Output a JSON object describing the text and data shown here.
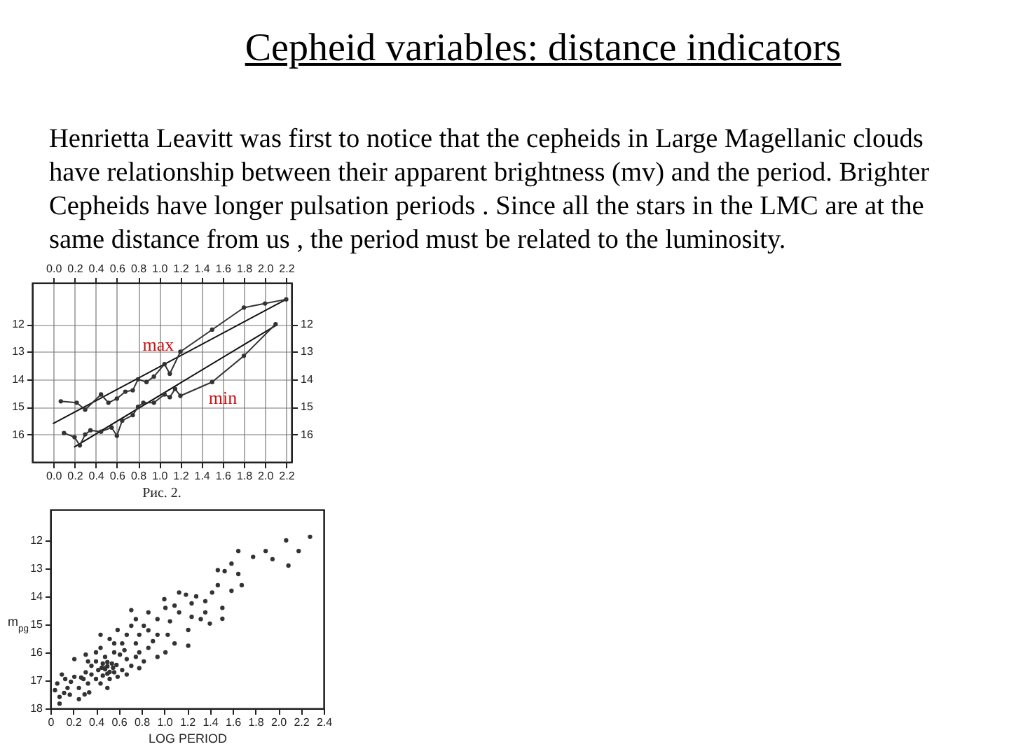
{
  "chart_data": [
    {
      "type": "line",
      "title": "Cepheid variables: distance indicators",
      "subtitle": "Henrietta Leavitt was first to notice that the cepheids in Large Magellanic clouds have relationship between their apparent brightness (mv) and the period. Brighter Cepheids have longer pulsation periods . Since all the stars in the LMC are at the same distance from us , the period must be related to the luminosity.",
      "series": [
        {
          "color": "#111111",
          "marker": "none",
          "x": [
            0.0,
            2.2
          ],
          "values": [
            15.6,
            11.1
          ]
        },
        {
          "color": "#111111",
          "marker": "none",
          "x": [
            0.2,
            2.1
          ],
          "values": [
            16.45,
            12.05
          ]
        },
        {
          "color": "#333333",
          "x": [
            0.07,
            0.22,
            0.3,
            0.45,
            0.52,
            0.6,
            0.68,
            0.75,
            0.8,
            0.88,
            0.95,
            1.05,
            1.1,
            1.2,
            1.5,
            1.8,
            2.0,
            2.2
          ],
          "values": [
            14.8,
            14.85,
            15.1,
            14.55,
            14.85,
            14.7,
            14.45,
            14.4,
            14.0,
            14.1,
            13.9,
            13.45,
            13.8,
            13.0,
            12.2,
            11.4,
            11.25,
            11.1
          ]
        },
        {
          "color": "#333333",
          "x": [
            0.1,
            0.2,
            0.25,
            0.3,
            0.35,
            0.45,
            0.55,
            0.6,
            0.65,
            0.75,
            0.8,
            0.85,
            0.95,
            1.05,
            1.1,
            1.15,
            1.2,
            1.5,
            1.8,
            2.1
          ],
          "values": [
            15.95,
            16.1,
            16.4,
            16.0,
            15.85,
            15.9,
            15.75,
            16.05,
            15.5,
            15.3,
            15.0,
            14.85,
            14.85,
            14.55,
            14.65,
            14.35,
            14.6,
            14.1,
            13.15,
            12.0
          ]
        }
      ],
      "xlim": [
        -0.2,
        2.25
      ],
      "xticks": [
        {
          "value": 0,
          "label": "0.0"
        },
        0.2,
        0.4,
        0.6,
        0.8,
        {
          "value": 1,
          "label": "1.0"
        },
        1.2,
        1.4,
        1.6,
        1.8,
        {
          "value": 2,
          "label": "2.0"
        },
        2.2
      ],
      "x2lim": [
        -0.2,
        2.25
      ],
      "x2ticks": [
        {
          "value": 0,
          "label": "0.0"
        },
        0.2,
        0.4,
        0.6,
        0.8,
        {
          "value": 1,
          "label": "1.0"
        },
        1.2,
        1.4,
        1.6,
        1.8,
        {
          "value": 2,
          "label": "2.0"
        },
        2.2
      ],
      "ylim": [
        17,
        10.5
      ],
      "yticks": [
        12,
        13,
        14,
        15,
        16
      ],
      "y2lim": [
        17,
        10.5
      ],
      "y2ticks": [
        12,
        13,
        14,
        15,
        16
      ],
      "grid": true,
      "marker": "circle",
      "annotations": [
        "max",
        "min",
        "Рис. 2."
      ]
    },
    {
      "type": "scatter",
      "xlabel": "LOG PERIOD",
      "ylabel": "m$_{pg}$",
      "color": "#333333",
      "marker": "circle",
      "x": [
        2.18,
        2.07,
        2.28,
        1.95,
        2.09,
        1.89,
        1.78,
        1.65,
        1.59,
        1.53,
        1.47,
        1.65,
        1.68,
        1.59,
        1.47,
        1.42,
        1.36,
        1.51,
        1.51,
        1.28,
        1.19,
        1.09,
        1.0,
        1.01,
        1.13,
        1.24,
        1.36,
        1.21,
        1.21,
        1.05,
        0.94,
        0.86,
        0.82,
        0.94,
        0.78,
        0.71,
        0.67,
        0.63,
        0.75,
        0.86,
        1.03,
        1.09,
        1.01,
        0.59,
        0.52,
        0.44,
        0.48,
        0.56,
        0.61,
        0.67,
        0.54,
        0.46,
        0.48,
        0.42,
        0.36,
        0.36,
        0.31,
        0.29,
        0.21,
        0.13,
        0.1,
        0.06,
        0.04,
        0.08,
        0.15,
        0.17,
        0.25,
        0.33,
        0.4,
        0.44,
        0.52,
        0.56,
        0.63,
        0.71,
        0.75,
        0.82,
        0.59,
        0.5,
        0.34,
        0.25,
        0.08,
        0.21,
        0.31,
        0.4,
        0.33,
        0.44,
        0.71,
        0.86,
        0.9,
        1.32,
        1.4,
        1.13,
        1.24,
        0.75,
        0.56,
        0.5,
        0.46,
        0.4,
        0.65,
        0.78,
        0.94,
        0.67,
        0.78,
        0.48,
        0.5,
        0.52,
        0.45,
        0.55,
        0.5,
        0.58,
        0.12,
        0.18,
        0.27,
        0.3
      ],
      "values": [
        12.38,
        12.0,
        11.87,
        12.67,
        12.9,
        12.38,
        12.59,
        12.38,
        12.83,
        13.1,
        13.06,
        13.2,
        13.6,
        13.8,
        13.6,
        13.86,
        14.17,
        14.41,
        14.8,
        14.0,
        13.94,
        14.33,
        14.1,
        14.41,
        14.57,
        14.73,
        14.57,
        15.2,
        15.76,
        14.89,
        14.81,
        14.57,
        15.05,
        15.37,
        15.37,
        15.05,
        15.37,
        15.68,
        15.68,
        15.84,
        15.37,
        15.68,
        16.0,
        15.2,
        15.52,
        15.84,
        16.16,
        16.0,
        16.08,
        16.24,
        16.4,
        16.4,
        16.56,
        16.63,
        16.48,
        16.79,
        16.71,
        16.95,
        16.87,
        16.95,
        16.79,
        17.11,
        17.35,
        17.59,
        17.27,
        17.51,
        17.27,
        17.11,
        16.95,
        17.11,
        16.95,
        16.71,
        16.63,
        16.48,
        16.16,
        16.32,
        16.87,
        17.27,
        17.43,
        17.67,
        17.83,
        16.24,
        16.08,
        16.0,
        16.32,
        15.37,
        14.49,
        15.21,
        15.6,
        14.81,
        14.97,
        13.86,
        14.25,
        14.81,
        15.68,
        16.76,
        16.83,
        16.32,
        15.92,
        16.0,
        16.16,
        16.79,
        16.56,
        16.6,
        16.5,
        16.7,
        16.55,
        16.55,
        16.35,
        16.45,
        17.45,
        17.05,
        16.9,
        17.5
      ],
      "xlim": [
        0,
        2.4
      ],
      "xticks": [
        0,
        0.2,
        0.4,
        0.6,
        0.8,
        {
          "value": 1,
          "label": "1.0"
        },
        1.2,
        1.4,
        1.6,
        1.8,
        {
          "value": 2,
          "label": "2.0"
        },
        2.2,
        2.4
      ],
      "ylim": [
        18,
        10.9
      ],
      "yticks": [
        12,
        13,
        14,
        15,
        16,
        17,
        18
      ]
    }
  ]
}
